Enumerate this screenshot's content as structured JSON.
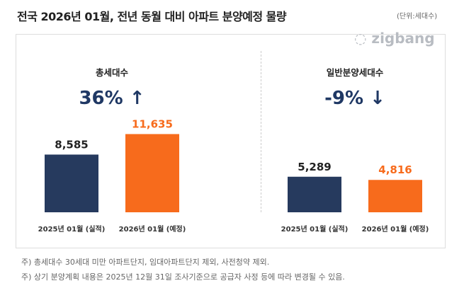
{
  "header": {
    "title": "전국 2026년 01월, 전년 동월 대비 아파트 분양예정 물량",
    "unit": "(단위:세대수)",
    "logo": "zigbang"
  },
  "colors": {
    "prev": "#263a5e",
    "next": "#f76b1c",
    "pct": "#1f3864"
  },
  "chart_data": [
    {
      "type": "bar",
      "title": "총세대수",
      "change": "36% ↑",
      "categories": [
        "2025년 01월 (실적)",
        "2026년 01월 (예정)"
      ],
      "values": [
        8585,
        11635
      ],
      "labels": [
        "8,585",
        "11,635"
      ]
    },
    {
      "type": "bar",
      "title": "일반분양세대수",
      "change": "-9% ↓",
      "categories": [
        "2025년 01월 (실적)",
        "2026년 01월 (예정)"
      ],
      "values": [
        5289,
        4816
      ],
      "labels": [
        "5,289",
        "4,816"
      ]
    }
  ],
  "notes": [
    "주) 총세대수 30세대 미만 아파트단지, 임대아파트단지 제외, 사전청약 제외.",
    "주) 상기 분양계획 내용은 2025년 12월 31일 조사기준으로 공급자 사정 등에 따라 변경될 수 있음."
  ]
}
